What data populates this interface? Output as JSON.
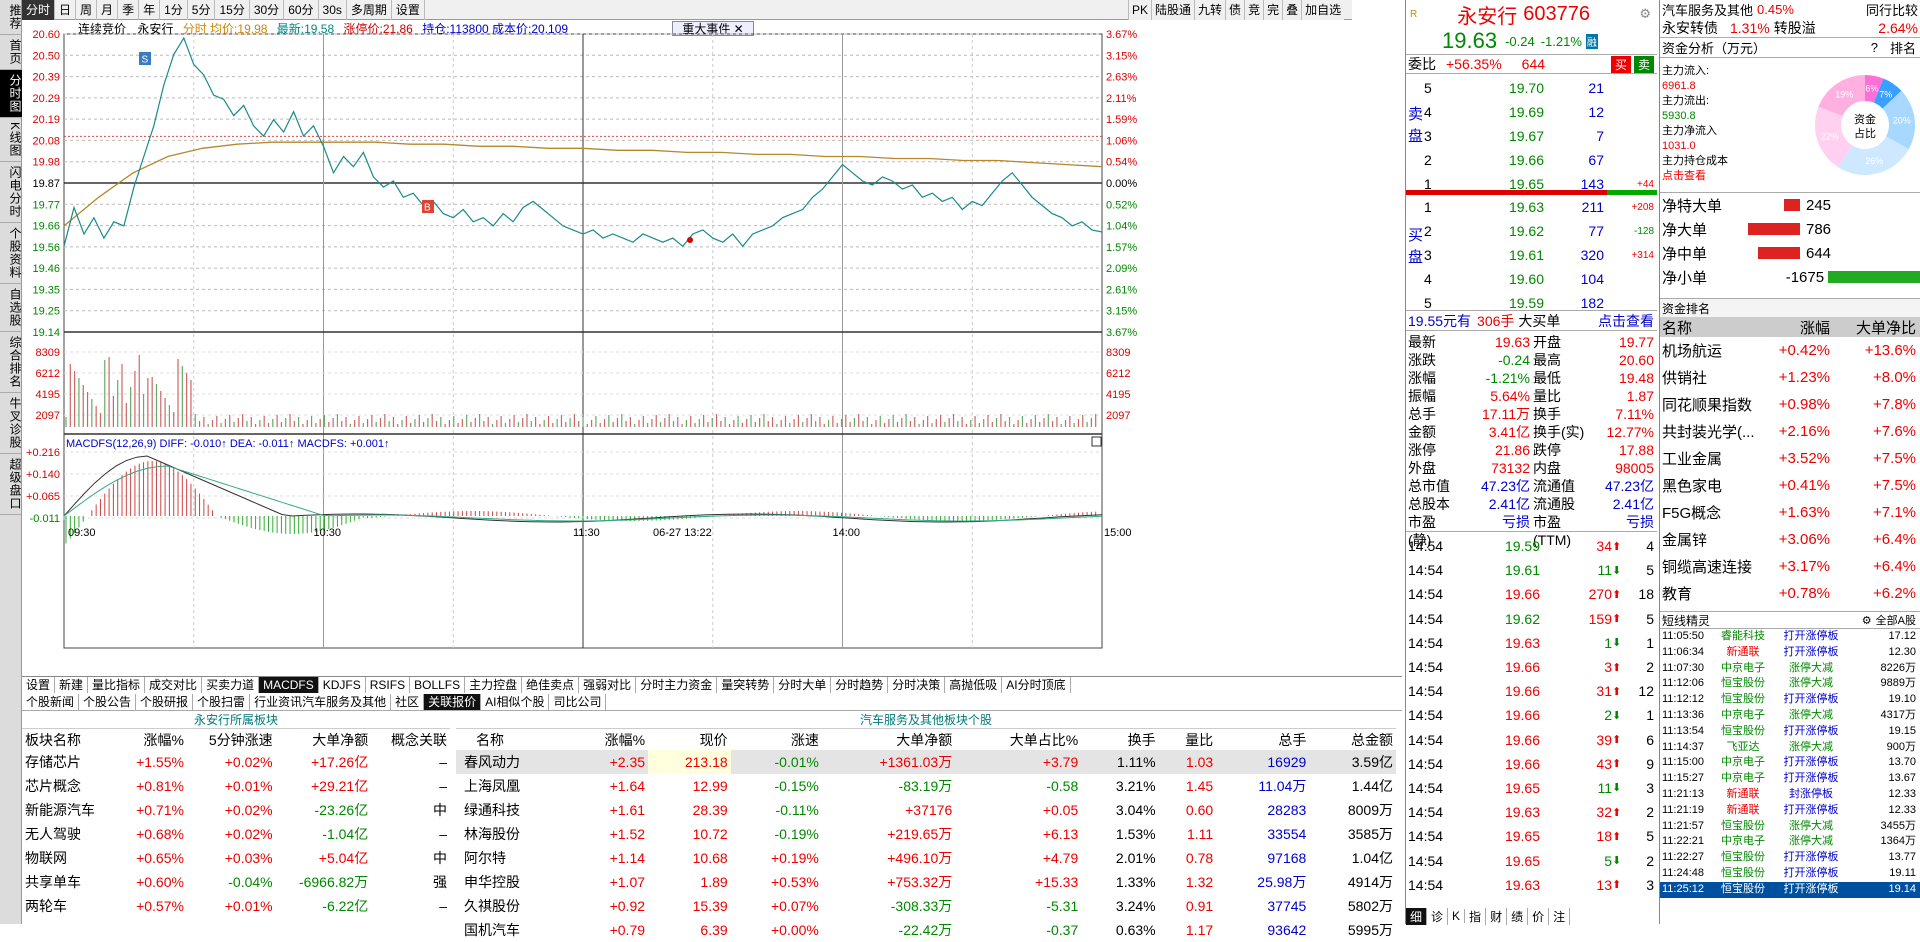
{
  "leftnav": [
    "推荐",
    "首页",
    "分时图",
    "K线图",
    "闪电分时",
    "个股资料",
    "自选股",
    "综合排名",
    "牛叉诊股",
    "超级盘口"
  ],
  "toolbar": [
    "分时",
    "日",
    "周",
    "月",
    "季",
    "年",
    "1分",
    "5分",
    "15分",
    "30分",
    "60分",
    "30s",
    "多周期",
    "设置"
  ],
  "toolbar_right": [
    "PK",
    "陆股通",
    "九转",
    "债",
    "竞",
    "完",
    "叠",
    "加自选"
  ],
  "info": {
    "mode": "连续竞价",
    "name": "永安行",
    "avg_label": "分时 均价:",
    "avg": "19.98",
    "last_label": "最新:",
    "last": "19.58",
    "limit_label": "涨停价:21.86",
    "hold": "持仓:113800 成本价:20.109",
    "event": "重大事件"
  },
  "colors": {
    "up": "#e00000",
    "down": "#008000",
    "price_line": "#1a8a8a",
    "avg_line": "#b8862b"
  },
  "chart_data": {
    "type": "line",
    "x_labels": [
      "09:30",
      "10:30",
      "11:30",
      "06-27 13:22",
      "14:00",
      "15:00"
    ],
    "y_left": [
      "20.60",
      "20.50",
      "20.39",
      "20.29",
      "20.19",
      "20.08",
      "19.98",
      "19.87",
      "19.77",
      "19.66",
      "19.56",
      "19.46",
      "19.35",
      "19.25",
      "19.14"
    ],
    "y_right": [
      "3.67%",
      "3.15%",
      "2.63%",
      "2.11%",
      "1.59%",
      "1.06%",
      "0.54%",
      "0.00%",
      "0.52%",
      "1.04%",
      "1.57%",
      "2.09%",
      "2.61%",
      "3.15%",
      "3.67%"
    ],
    "prev_close": 19.87,
    "ylim": [
      19.14,
      20.6
    ],
    "price": [
      19.56,
      19.75,
      19.62,
      19.7,
      19.6,
      19.68,
      19.66,
      19.85,
      20.0,
      20.15,
      20.35,
      20.5,
      20.58,
      20.45,
      20.4,
      20.3,
      20.28,
      20.2,
      20.25,
      20.15,
      20.1,
      20.18,
      20.12,
      20.22,
      20.1,
      20.15,
      20.05,
      19.92,
      20.0,
      19.95,
      20.02,
      19.9,
      19.85,
      19.88,
      19.8,
      19.82,
      19.76,
      19.78,
      19.72,
      19.7,
      19.74,
      19.68,
      19.7,
      19.66,
      19.72,
      19.68,
      19.75,
      19.78,
      19.74,
      19.7,
      19.66,
      19.64,
      19.62,
      19.64,
      19.6,
      19.62,
      19.6,
      19.58,
      19.62,
      19.6,
      19.58,
      19.6,
      19.56,
      19.62,
      19.64,
      19.6,
      19.58,
      19.62,
      19.56,
      19.62,
      19.64,
      19.66,
      19.7,
      19.72,
      19.74,
      19.8,
      19.84,
      19.9,
      19.96,
      19.92,
      19.88,
      19.86,
      19.9,
      19.88,
      19.84,
      19.86,
      19.8,
      19.82,
      19.78,
      19.8,
      19.74,
      19.78,
      19.76,
      19.82,
      19.88,
      19.92,
      19.86,
      19.8,
      19.76,
      19.72,
      19.7,
      19.66,
      19.68,
      19.64,
      19.63
    ],
    "avg": [
      19.66,
      19.8,
      19.92,
      20.0,
      20.04,
      20.06,
      20.07,
      20.07,
      20.07,
      20.07,
      20.06,
      20.06,
      20.05,
      20.05,
      20.04,
      20.04,
      20.03,
      20.03,
      20.02,
      20.02,
      20.01,
      20.01,
      20.0,
      20.0,
      19.99,
      19.99,
      19.98,
      19.98,
      19.97,
      19.96,
      19.95
    ],
    "volume_axis": [
      "8309",
      "6212",
      "4195",
      "2097"
    ],
    "macd_label": "MACDFS(12,26,9) DIFF: -0.010↑ DEA: -0.011↑ MACDFS: +0.001↑",
    "macd_axis": [
      "+0.216",
      "+0.140",
      "+0.065",
      "-0.011"
    ]
  },
  "bottomtabs": [
    "设置",
    "新建",
    "量比指标",
    "成交对比",
    "买卖力道",
    "MACDFS",
    "KDJFS",
    "RSIFS",
    "BOLLFS",
    "主力控盘",
    "绝佳卖点",
    "强弱对比",
    "分时主力资金",
    "量突转势",
    "分时大单",
    "分时趋势",
    "分时决策",
    "高抛低吸",
    "AI分时顶底"
  ],
  "subtabs": [
    "个股新闻",
    "个股公告",
    "个股研报",
    "个股扫雷",
    "行业资讯汽车服务及其他",
    "社区",
    "关联报价",
    "AI相似个股",
    "司比公司"
  ],
  "left_table": {
    "caption": "永安行所属板块",
    "headers": [
      "板块名称",
      "涨幅%",
      "5分钟涨速",
      "大单净额",
      "概念关联"
    ],
    "rows": [
      [
        "存储芯片",
        "+1.55%",
        "+0.02%",
        "+17.26亿",
        "–"
      ],
      [
        "芯片概念",
        "+0.81%",
        "+0.01%",
        "+29.21亿",
        "–"
      ],
      [
        "新能源汽车",
        "+0.71%",
        "+0.02%",
        "-23.26亿",
        "中"
      ],
      [
        "无人驾驶",
        "+0.68%",
        "+0.02%",
        "-1.04亿",
        "–"
      ],
      [
        "物联网",
        "+0.65%",
        "+0.03%",
        "+5.04亿",
        "中"
      ],
      [
        "共享单车",
        "+0.60%",
        "-0.04%",
        "-6966.82万",
        "强"
      ],
      [
        "两轮车",
        "+0.57%",
        "+0.01%",
        "-6.22亿",
        "–"
      ]
    ]
  },
  "right_table": {
    "caption": "汽车服务及其他板块个股",
    "headers": [
      "名称",
      "涨幅%",
      "现价",
      "涨速",
      "大单净额",
      "大单占比%",
      "换手",
      "量比",
      "总手",
      "总金额"
    ],
    "rows": [
      [
        "春风动力",
        "+2.35",
        "213.18",
        "-0.01%",
        "+1361.03万",
        "+3.79",
        "1.11%",
        "1.03",
        "16929",
        "3.59亿"
      ],
      [
        "上海凤凰",
        "+1.64",
        "12.99",
        "-0.15%",
        "-83.19万",
        "-0.58",
        "3.21%",
        "1.45",
        "11.04万",
        "1.44亿"
      ],
      [
        "绿通科技",
        "+1.61",
        "28.39",
        "-0.11%",
        "+37176",
        "+0.05",
        "3.04%",
        "0.60",
        "28283",
        "8009万"
      ],
      [
        "林海股份",
        "+1.52",
        "10.72",
        "-0.19%",
        "+219.65万",
        "+6.13",
        "1.53%",
        "1.11",
        "33554",
        "3585万"
      ],
      [
        "阿尔特",
        "+1.14",
        "10.68",
        "+0.19%",
        "+496.10万",
        "+4.79",
        "2.01%",
        "0.78",
        "97168",
        "1.04亿"
      ],
      [
        "申华控股",
        "+1.07",
        "1.89",
        "+0.53%",
        "+753.32万",
        "+15.33",
        "1.33%",
        "1.32",
        "25.98万",
        "4914万"
      ],
      [
        "久祺股份",
        "+0.92",
        "15.39",
        "+0.07%",
        "-308.33万",
        "-5.31",
        "3.24%",
        "0.91",
        "37745",
        "5802万"
      ],
      [
        "国机汽车",
        "+0.79",
        "6.39",
        "+0.00%",
        "-22.42万",
        "-0.37",
        "0.63%",
        "1.17",
        "93642",
        "5995万"
      ]
    ]
  },
  "quote": {
    "name": "永安行",
    "code": "603776",
    "price": "19.63",
    "chg": "-0.24",
    "pct": "-1.21%",
    "rong": "融",
    "wb_label": "委比",
    "wb": "+56.35%",
    "wc": "644",
    "buy_btn": "买",
    "sell_btn": "卖",
    "sell_side": "卖盘",
    "buy_side": "买盘",
    "asks": [
      [
        "5",
        "19.70",
        "21",
        ""
      ],
      [
        "4",
        "19.69",
        "12",
        ""
      ],
      [
        "3",
        "19.67",
        "7",
        ""
      ],
      [
        "2",
        "19.66",
        "67",
        ""
      ],
      [
        "1",
        "19.65",
        "143",
        "+44"
      ]
    ],
    "bids": [
      [
        "1",
        "19.63",
        "211",
        "+208"
      ],
      [
        "2",
        "19.62",
        "77",
        "-128"
      ],
      [
        "3",
        "19.61",
        "320",
        "+314"
      ],
      [
        "4",
        "19.60",
        "104",
        ""
      ],
      [
        "5",
        "19.59",
        "182",
        ""
      ]
    ],
    "big_price": "19.55元有",
    "big_vol": "306手",
    "big_label": "大买单",
    "big_link": "点击查看",
    "stats": [
      [
        "最新",
        "19.63",
        "开盘",
        "19.77"
      ],
      [
        "涨跌",
        "-0.24",
        "最高",
        "20.60"
      ],
      [
        "涨幅",
        "-1.21%",
        "最低",
        "19.48"
      ],
      [
        "振幅",
        "5.64%",
        "量比",
        "1.87"
      ],
      [
        "总手",
        "17.11万",
        "换手",
        "7.11%"
      ],
      [
        "金额",
        "3.41亿",
        "换手(实)",
        "12.77%"
      ],
      [
        "涨停",
        "21.86",
        "跌停",
        "17.88"
      ],
      [
        "外盘",
        "73132",
        "内盘",
        "98005"
      ],
      [
        "总市值",
        "47.23亿",
        "流通值",
        "47.23亿"
      ],
      [
        "总股本",
        "2.41亿",
        "流通股",
        "2.41亿"
      ],
      [
        "市盈(静)",
        "亏损",
        "市盈(TTM)",
        "亏损"
      ]
    ],
    "ticks": [
      [
        "14:54",
        "19.59",
        "34",
        "4"
      ],
      [
        "14:54",
        "19.61",
        "11",
        "5"
      ],
      [
        "14:54",
        "19.66",
        "270",
        "18"
      ],
      [
        "14:54",
        "19.62",
        "159",
        "5"
      ],
      [
        "14:54",
        "19.63",
        "1",
        "1"
      ],
      [
        "14:54",
        "19.66",
        "3",
        "2"
      ],
      [
        "14:54",
        "19.66",
        "31",
        "12"
      ],
      [
        "14:54",
        "19.66",
        "2",
        "1"
      ],
      [
        "14:54",
        "19.66",
        "39",
        "6"
      ],
      [
        "14:54",
        "19.66",
        "43",
        "9"
      ],
      [
        "14:54",
        "19.65",
        "11",
        "3"
      ],
      [
        "14:54",
        "19.63",
        "32",
        "2"
      ],
      [
        "14:54",
        "19.65",
        "18",
        "5"
      ],
      [
        "14:54",
        "19.65",
        "5",
        "2"
      ],
      [
        "14:54",
        "19.63",
        "13",
        "3"
      ]
    ],
    "bottom_tabs": [
      "细",
      "诊",
      "K",
      "指",
      "财",
      "绩",
      "价",
      "注"
    ]
  },
  "far": {
    "sector1": "汽车服务及其他",
    "sector1_pct": "0.45%",
    "industry_label": "同行比较",
    "bond": "永安转债",
    "bond_pct": "1.31%",
    "bond_lbl": "转股溢",
    "bond_prem": "2.64%",
    "fund_title": "资金分析（万元）",
    "fund_help": "?",
    "fund_rank": "排名",
    "inflow_label": "主力流入:",
    "inflow": "6961.8",
    "outflow_label": "主力流出:",
    "outflow": "5930.8",
    "net_label": "主力净流入",
    "net": "1031.0",
    "cost_label": "主力持仓成本",
    "cost_link": "点击查看",
    "donut_center": "资金占比",
    "donut": [
      {
        "label": "6%",
        "v": 6,
        "c": "#ff6fd8"
      },
      {
        "label": "7%",
        "v": 7,
        "c": "#3aa0ff"
      },
      {
        "label": "20%",
        "v": 20,
        "c": "#a8d8ff"
      },
      {
        "label": "26%",
        "v": 26,
        "c": "#cde8ff"
      },
      {
        "label": "22%",
        "v": 22,
        "c": "#ffd0ef"
      },
      {
        "label": "19%",
        "v": 19,
        "c": "#ffb0e0"
      }
    ],
    "flows": [
      {
        "label": "净特大单",
        "val": "245",
        "v": 245
      },
      {
        "label": "净大单",
        "val": "786",
        "v": 786
      },
      {
        "label": "净中单",
        "val": "644",
        "v": 644
      },
      {
        "label": "净小单",
        "val": "-1675",
        "v": -1675
      }
    ],
    "rank_title": "资金排名",
    "rank_headers": [
      "名称",
      "涨幅",
      "大单净比"
    ],
    "ranks": [
      [
        "机场航运",
        "+0.42%",
        "+13.6%"
      ],
      [
        "供销社",
        "+1.23%",
        "+8.0%"
      ],
      [
        "同花顺果指数",
        "+0.98%",
        "+7.8%"
      ],
      [
        "共封装光学(...",
        "+2.16%",
        "+7.6%"
      ],
      [
        "工业金属",
        "+3.52%",
        "+7.5%"
      ],
      [
        "黑色家电",
        "+0.41%",
        "+7.5%"
      ],
      [
        "F5G概念",
        "+1.63%",
        "+7.1%"
      ],
      [
        "金属锌",
        "+3.06%",
        "+6.4%"
      ],
      [
        "铜缆高速连接",
        "+3.17%",
        "+6.4%"
      ],
      [
        "教育",
        "+0.78%",
        "+6.2%"
      ]
    ],
    "short_title": "短线精灵",
    "short_filter": "全部A股",
    "shorts": [
      [
        "11:05:50",
        "睿能科技",
        "打开涨停板",
        "17.12"
      ],
      [
        "11:06:34",
        "新通联",
        "打开涨停板",
        "12.30"
      ],
      [
        "11:07:30",
        "中京电子",
        "涨停大减",
        "8226万"
      ],
      [
        "11:12:06",
        "恒宝股份",
        "涨停大减",
        "9889万"
      ],
      [
        "11:12:12",
        "恒宝股份",
        "打开涨停板",
        "19.10"
      ],
      [
        "11:13:36",
        "中京电子",
        "涨停大减",
        "4317万"
      ],
      [
        "11:13:54",
        "恒宝股份",
        "打开涨停板",
        "19.15"
      ],
      [
        "11:14:37",
        "飞亚达",
        "涨停大减",
        "900万"
      ],
      [
        "11:15:00",
        "中京电子",
        "打开涨停板",
        "13.70"
      ],
      [
        "11:15:27",
        "中京电子",
        "打开涨停板",
        "13.67"
      ],
      [
        "11:21:13",
        "新通联",
        "封涨停板",
        "12.33"
      ],
      [
        "11:21:19",
        "新通联",
        "打开涨停板",
        "12.33"
      ],
      [
        "11:21:57",
        "恒宝股份",
        "涨停大减",
        "3455万"
      ],
      [
        "11:22:21",
        "中京电子",
        "涨停大减",
        "1364万"
      ],
      [
        "11:22:27",
        "恒宝股份",
        "打开涨停板",
        "13.77"
      ],
      [
        "11:24:48",
        "恒宝股份",
        "打开涨停板",
        "19.11"
      ],
      [
        "11:25:12",
        "恒宝股份",
        "打开涨停板",
        "19.14"
      ]
    ]
  }
}
